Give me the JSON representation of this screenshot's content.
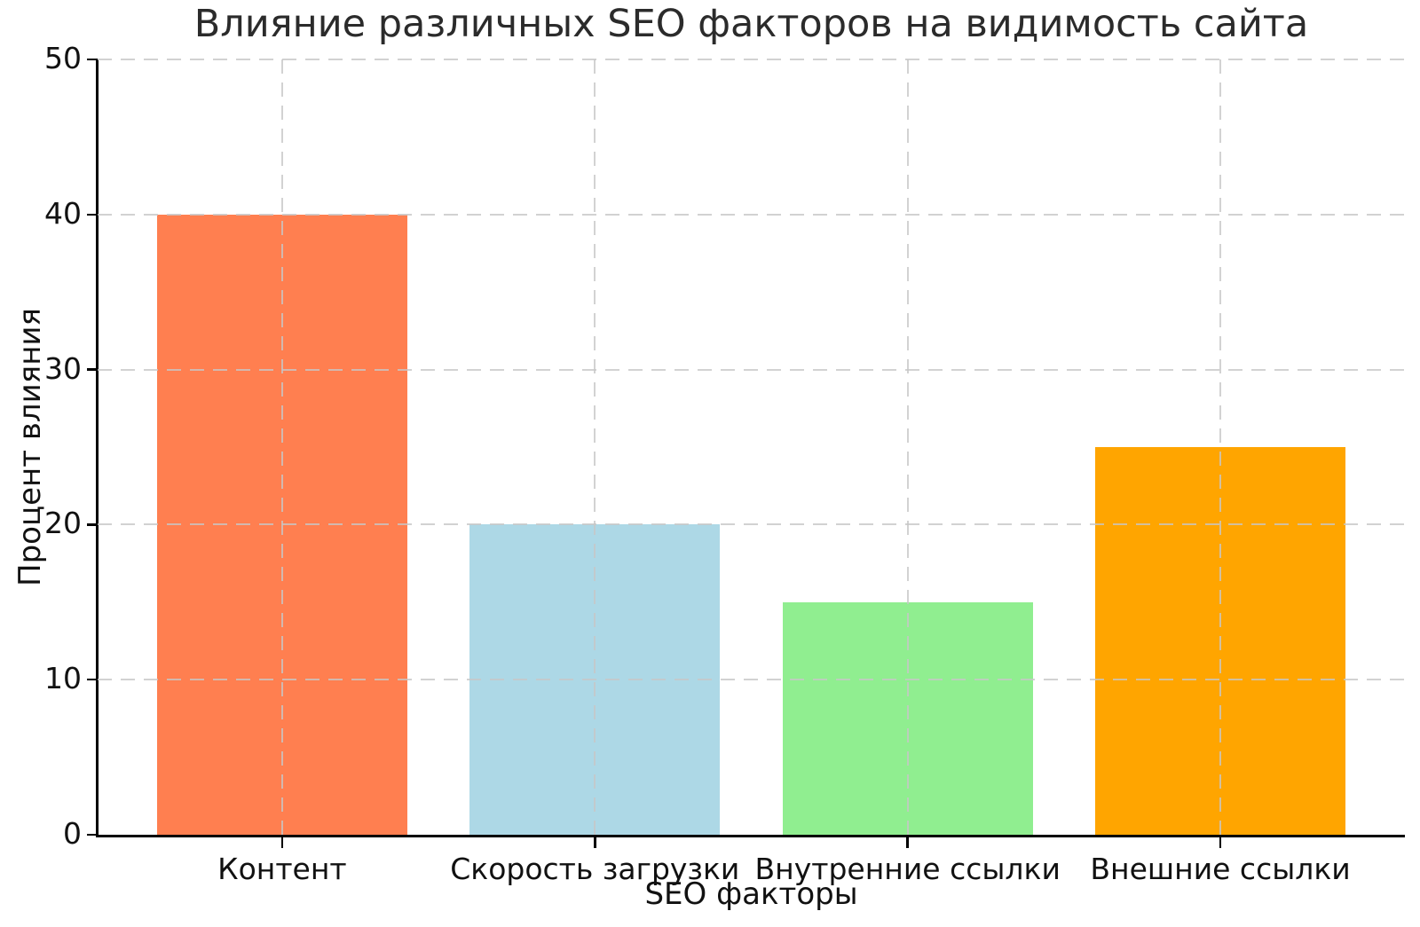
{
  "figure": {
    "background_color": "#ffffff",
    "text_color": "#111111",
    "spine_color": "#000000"
  },
  "chart_data": {
    "type": "bar",
    "title": "Влияние различных SEO факторов на видимость сайта",
    "xlabel": "SEO факторы",
    "ylabel": "Процент влияния",
    "categories": [
      "Контент",
      "Скорость загрузки",
      "Внутренние ссылки",
      "Внешние ссылки"
    ],
    "values": [
      40,
      20,
      15,
      25
    ],
    "bar_colors": [
      "#FF7F50",
      "#ADD8E6",
      "#90EE90",
      "#FFA500"
    ],
    "bar_width_fraction": 0.8,
    "ylim": [
      0,
      50
    ],
    "yticks": [
      0,
      10,
      20,
      30,
      40,
      50
    ],
    "grid": {
      "visible": true,
      "linestyle": "dashed",
      "color": "#c7c7c7",
      "axes": "both",
      "above_bars": true
    },
    "legend": "none"
  }
}
